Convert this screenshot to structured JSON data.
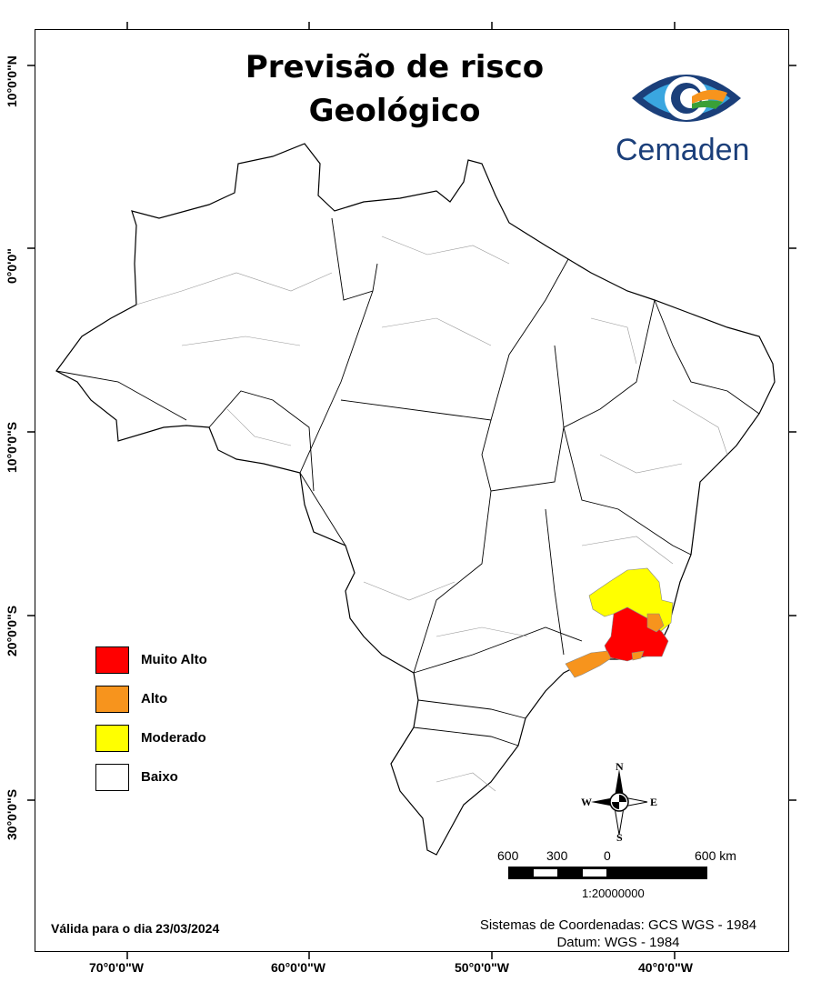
{
  "title": {
    "line1": "Previsão de risco",
    "line2": "Geológico"
  },
  "logo": {
    "text": "Cemaden"
  },
  "axes": {
    "lat_labels": [
      "10°0'0\"N",
      "0°0'0\"",
      "10°0'0\"S",
      "20°0'0\"S",
      "30°0'0\"S"
    ],
    "lon_labels": [
      "70°0'0\"W",
      "60°0'0\"W",
      "50°0'0\"W",
      "40°0'0\"W"
    ]
  },
  "legend": [
    {
      "label": "Muito Alto",
      "color": "#ff0000"
    },
    {
      "label": "Alto",
      "color": "#f7941d"
    },
    {
      "label": "Moderado",
      "color": "#ffff00"
    },
    {
      "label": "Baixo",
      "color": "#ffffff"
    }
  ],
  "compass": {
    "n": "N",
    "s": "S",
    "e": "E",
    "w": "W"
  },
  "scale": {
    "labels": [
      "600",
      "300",
      "0",
      "600 km"
    ],
    "ratio": "1:20000000"
  },
  "validity": {
    "prefix": "Válida para o dia",
    "date": "23/03/2024"
  },
  "coords": {
    "line1": "Sistemas de Coordenadas: GCS WGS - 1984",
    "line2": "Datum: WGS - 1984"
  }
}
